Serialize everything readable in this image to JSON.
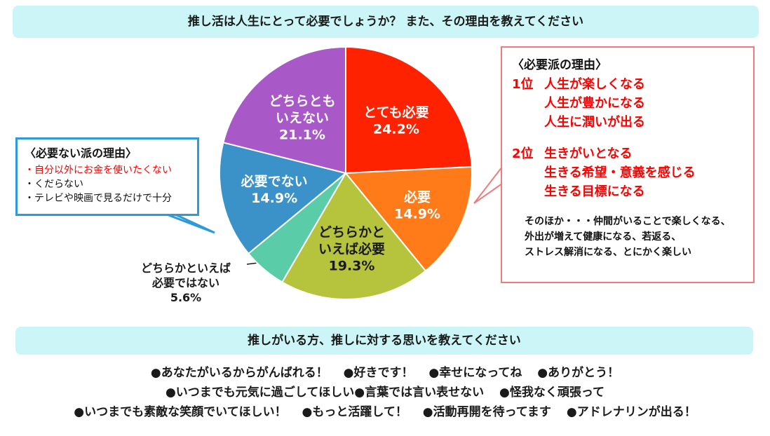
{
  "header": {
    "question": "推し活は人生にとって必要でしょうか？ また、その理由を教えてください"
  },
  "chart_data": {
    "type": "pie",
    "slices": [
      {
        "label_lines": [
          "とても必要"
        ],
        "value": 24.2,
        "value_text": "24.2%",
        "color": "#ff2200"
      },
      {
        "label_lines": [
          "必要"
        ],
        "value": 14.9,
        "value_text": "14.9%",
        "color": "#ff7b1a"
      },
      {
        "label_lines": [
          "どちらかと",
          "いえば必要"
        ],
        "value": 19.3,
        "value_text": "19.3%",
        "color": "#b5c43c"
      },
      {
        "label_lines": [
          "どちらかといえば",
          "必要ではない"
        ],
        "value": 5.6,
        "value_text": "5.6%",
        "color": "#5bcca8"
      },
      {
        "label_lines": [
          "必要でない"
        ],
        "value": 14.9,
        "value_text": "14.9%",
        "color": "#3b92c8"
      },
      {
        "label_lines": [
          "どちらとも",
          "いえない"
        ],
        "value": 21.1,
        "value_text": "21.1%",
        "color": "#a959c7"
      }
    ]
  },
  "left_box": {
    "title": "〈必要ない派の理由〉",
    "items": [
      "・自分以外にお金を使いたくない",
      "・くだらない",
      "・テレビや映画で見るだけで十分"
    ],
    "first_item_color": "#ff0000"
  },
  "right_box": {
    "title": "〈必要派の理由〉",
    "ranks": [
      {
        "num": "1位",
        "reasons": [
          "人生が楽しくなる",
          "人生が豊かになる",
          "人生に潤いが出る"
        ]
      },
      {
        "num": "2位",
        "reasons": [
          "生きがいとなる",
          "生きる希望・意義を感じる",
          "生きる目標になる"
        ]
      }
    ],
    "other_lines": [
      "そのほか・・・仲間がいることで楽しくなる、",
      "外出が増えて健康になる、若返る、",
      "ストレス解消になる、とにかく楽しい"
    ]
  },
  "bottom": {
    "question": "推しがいる方、推しに対する思いを教えてください",
    "lines": [
      [
        "●あなたがいるからがんばれる！",
        "●好きです！",
        "●幸せになってね",
        "●ありがとう！"
      ],
      [
        "●いつまでも元気に過ごしてほしい●言葉では言い表せない",
        "●怪我なく頑張って"
      ],
      [
        "●いつまでも素敵な笑顔でいてほしい！",
        "●もっと活躍して！",
        "●活動再開を待ってます",
        "●アドレナリンが出る！"
      ]
    ]
  },
  "colors": {
    "banner_bg": "#ccf5f7",
    "left_border": "#2f9bd6",
    "right_border": "#ef7c7c",
    "red_text": "#ff0000"
  }
}
